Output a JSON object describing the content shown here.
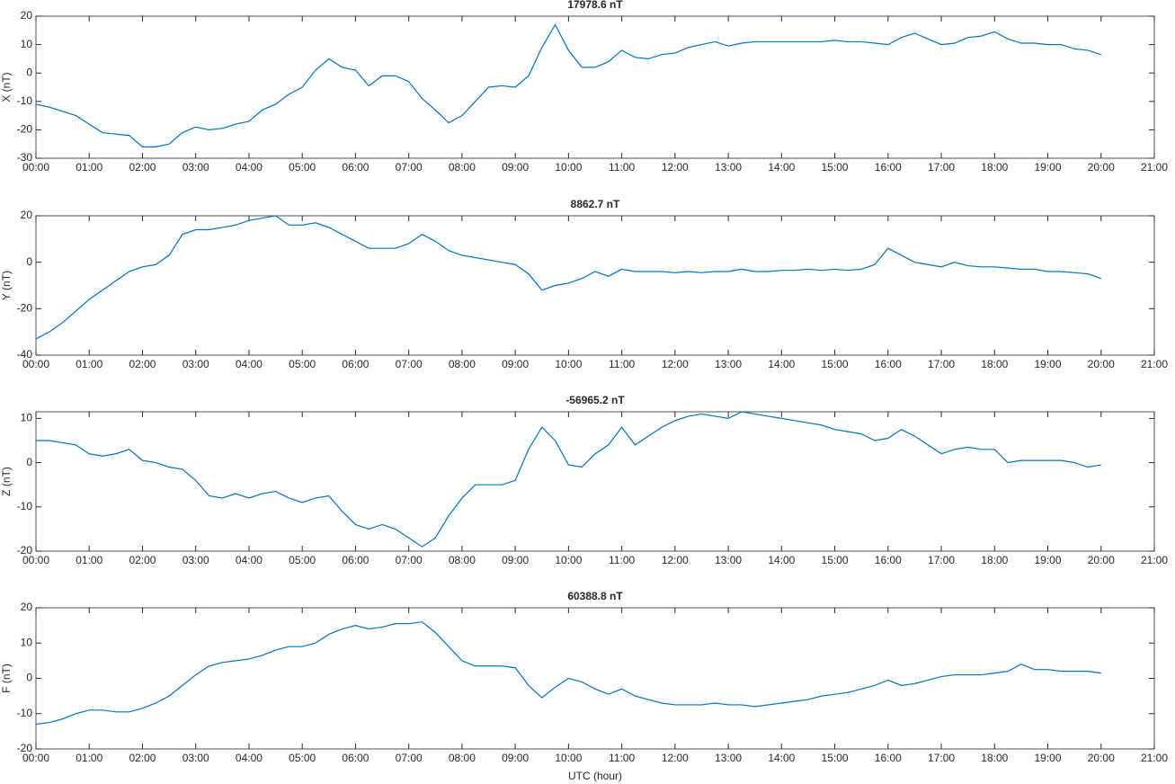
{
  "chart_data": [
    {
      "type": "line",
      "title": "17978.6 nT",
      "y_label": "X (nT)",
      "x": [
        0,
        0.25,
        0.5,
        0.75,
        1,
        1.25,
        1.5,
        1.75,
        2,
        2.25,
        2.5,
        2.75,
        3,
        3.25,
        3.5,
        3.75,
        4,
        4.25,
        4.5,
        4.75,
        5,
        5.25,
        5.5,
        5.75,
        6,
        6.25,
        6.5,
        6.75,
        7,
        7.25,
        7.5,
        7.75,
        8,
        8.25,
        8.5,
        8.75,
        9,
        9.25,
        9.5,
        9.75,
        10,
        10.25,
        10.5,
        10.75,
        11,
        11.25,
        11.5,
        11.75,
        12,
        12.25,
        12.5,
        12.75,
        13,
        13.25,
        13.5,
        13.75,
        14,
        14.25,
        14.5,
        14.75,
        15,
        15.25,
        15.5,
        15.75,
        16,
        16.25,
        16.5,
        16.75,
        17,
        17.25,
        17.5,
        17.75,
        18,
        18.25,
        18.5,
        18.75,
        19,
        19.25,
        19.5,
        19.75,
        20
      ],
      "series": [
        {
          "color": "#0072bd",
          "values": [
            -11,
            -12,
            -13.5,
            -15,
            -18,
            -21,
            -21.5,
            -22,
            -26,
            -26,
            -25,
            -21,
            -19,
            -20,
            -19.5,
            -18,
            -17,
            -13,
            -11,
            -7.5,
            -5,
            1,
            5,
            2,
            1,
            -4.5,
            -1,
            -1,
            -3,
            -9,
            -13,
            -17.5,
            -15,
            -10,
            -5,
            -4.5,
            -5,
            -1,
            9,
            17,
            8,
            2,
            2,
            4,
            8,
            5.5,
            5,
            6.5,
            7,
            9,
            10,
            11,
            9.5,
            10.5,
            11,
            11,
            11,
            11,
            11,
            11,
            11.5,
            11,
            11,
            10.5,
            10,
            12.5,
            14,
            12,
            10,
            10.5,
            12.5,
            13,
            14.5,
            12,
            10.5,
            10.5,
            10,
            10,
            8.5,
            8,
            6.5
          ]
        }
      ],
      "xlim": [
        0,
        21
      ],
      "xticks": [
        {
          "value": 0,
          "label": "00:00"
        },
        {
          "value": 1,
          "label": "01:00"
        },
        {
          "value": 2,
          "label": "02:00"
        },
        {
          "value": 3,
          "label": "03:00"
        },
        {
          "value": 4,
          "label": "04:00"
        },
        {
          "value": 5,
          "label": "05:00"
        },
        {
          "value": 6,
          "label": "06:00"
        },
        {
          "value": 7,
          "label": "07:00"
        },
        {
          "value": 8,
          "label": "08:00"
        },
        {
          "value": 9,
          "label": "09:00"
        },
        {
          "value": 10,
          "label": "10:00"
        },
        {
          "value": 11,
          "label": "11:00"
        },
        {
          "value": 12,
          "label": "12:00"
        },
        {
          "value": 13,
          "label": "13:00"
        },
        {
          "value": 14,
          "label": "14:00"
        },
        {
          "value": 15,
          "label": "15:00"
        },
        {
          "value": 16,
          "label": "16:00"
        },
        {
          "value": 17,
          "label": "17:00"
        },
        {
          "value": 18,
          "label": "18:00"
        },
        {
          "value": 19,
          "label": "19:00"
        },
        {
          "value": 20,
          "label": "20:00"
        },
        {
          "value": 21,
          "label": "21:00"
        }
      ],
      "ylim": [
        -30,
        20
      ],
      "yticks": [
        -30,
        -20,
        -10,
        0,
        10,
        20
      ]
    },
    {
      "type": "line",
      "title": "8862.7 nT",
      "y_label": "Y (nT)",
      "x": [
        0,
        0.25,
        0.5,
        0.75,
        1,
        1.25,
        1.5,
        1.75,
        2,
        2.25,
        2.5,
        2.75,
        3,
        3.25,
        3.5,
        3.75,
        4,
        4.25,
        4.5,
        4.75,
        5,
        5.25,
        5.5,
        5.75,
        6,
        6.25,
        6.5,
        6.75,
        7,
        7.25,
        7.5,
        7.75,
        8,
        8.25,
        8.5,
        8.75,
        9,
        9.25,
        9.5,
        9.75,
        10,
        10.25,
        10.5,
        10.75,
        11,
        11.25,
        11.5,
        11.75,
        12,
        12.25,
        12.5,
        12.75,
        13,
        13.25,
        13.5,
        13.75,
        14,
        14.25,
        14.5,
        14.75,
        15,
        15.25,
        15.5,
        15.75,
        16,
        16.25,
        16.5,
        16.75,
        17,
        17.25,
        17.5,
        17.75,
        18,
        18.25,
        18.5,
        18.75,
        19,
        19.25,
        19.5,
        19.75,
        20
      ],
      "series": [
        {
          "color": "#0072bd",
          "values": [
            -33,
            -30,
            -26,
            -21,
            -16,
            -12,
            -8,
            -4,
            -2,
            -1,
            3,
            12,
            14,
            14,
            15,
            16,
            18,
            19,
            20,
            16,
            16,
            17,
            15,
            12,
            9,
            6,
            6,
            6,
            8,
            12,
            9,
            5,
            3,
            2,
            1,
            0,
            -1,
            -5,
            -12,
            -10,
            -9,
            -7,
            -4,
            -6,
            -3,
            -4,
            -4,
            -4,
            -4.5,
            -4,
            -4.5,
            -4,
            -4,
            -3,
            -4,
            -4,
            -3.5,
            -3.5,
            -3,
            -3.5,
            -3,
            -3.5,
            -3,
            -1,
            6,
            3,
            0,
            -1,
            -2,
            0,
            -1.5,
            -2,
            -2,
            -2.5,
            -3,
            -3,
            -4,
            -4,
            -4.5,
            -5,
            -7
          ]
        }
      ],
      "xlim": [
        0,
        21
      ],
      "xticks": [
        {
          "value": 0,
          "label": "00:00"
        },
        {
          "value": 1,
          "label": "01:00"
        },
        {
          "value": 2,
          "label": "02:00"
        },
        {
          "value": 3,
          "label": "03:00"
        },
        {
          "value": 4,
          "label": "04:00"
        },
        {
          "value": 5,
          "label": "05:00"
        },
        {
          "value": 6,
          "label": "06:00"
        },
        {
          "value": 7,
          "label": "07:00"
        },
        {
          "value": 8,
          "label": "08:00"
        },
        {
          "value": 9,
          "label": "09:00"
        },
        {
          "value": 10,
          "label": "10:00"
        },
        {
          "value": 11,
          "label": "11:00"
        },
        {
          "value": 12,
          "label": "12:00"
        },
        {
          "value": 13,
          "label": "13:00"
        },
        {
          "value": 14,
          "label": "14:00"
        },
        {
          "value": 15,
          "label": "15:00"
        },
        {
          "value": 16,
          "label": "16:00"
        },
        {
          "value": 17,
          "label": "17:00"
        },
        {
          "value": 18,
          "label": "18:00"
        },
        {
          "value": 19,
          "label": "19:00"
        },
        {
          "value": 20,
          "label": "20:00"
        },
        {
          "value": 21,
          "label": "21:00"
        }
      ],
      "ylim": [
        -40,
        20
      ],
      "yticks": [
        -40,
        -20,
        0,
        20
      ]
    },
    {
      "type": "line",
      "title": "-56965.2 nT",
      "y_label": "Z (nT)",
      "x": [
        0,
        0.25,
        0.5,
        0.75,
        1,
        1.25,
        1.5,
        1.75,
        2,
        2.25,
        2.5,
        2.75,
        3,
        3.25,
        3.5,
        3.75,
        4,
        4.25,
        4.5,
        4.75,
        5,
        5.25,
        5.5,
        5.75,
        6,
        6.25,
        6.5,
        6.75,
        7,
        7.25,
        7.5,
        7.75,
        8,
        8.25,
        8.5,
        8.75,
        9,
        9.25,
        9.5,
        9.75,
        10,
        10.25,
        10.5,
        10.75,
        11,
        11.25,
        11.5,
        11.75,
        12,
        12.25,
        12.5,
        12.75,
        13,
        13.25,
        13.5,
        13.75,
        14,
        14.25,
        14.5,
        14.75,
        15,
        15.25,
        15.5,
        15.75,
        16,
        16.25,
        16.5,
        16.75,
        17,
        17.25,
        17.5,
        17.75,
        18,
        18.25,
        18.5,
        18.75,
        19,
        19.25,
        19.5,
        19.75,
        20
      ],
      "series": [
        {
          "color": "#0072bd",
          "values": [
            5,
            5,
            4.5,
            4,
            2,
            1.5,
            2,
            3,
            0.5,
            0,
            -1,
            -1.5,
            -4,
            -7.5,
            -8,
            -7,
            -8,
            -7,
            -6.5,
            -8,
            -9,
            -8,
            -7.5,
            -11,
            -14,
            -15,
            -14,
            -15,
            -17,
            -19,
            -17,
            -12,
            -8,
            -5,
            -5,
            -5,
            -4,
            3,
            8,
            5,
            -0.5,
            -1,
            2,
            4,
            8,
            4,
            6,
            8,
            9.5,
            10.5,
            11,
            10.5,
            10,
            11.5,
            11,
            10.5,
            10,
            9.5,
            9,
            8.5,
            7.5,
            7,
            6.5,
            5,
            5.5,
            7.5,
            6,
            4,
            2,
            3,
            3.5,
            3,
            3,
            0,
            0.5,
            0.5,
            0.5,
            0.5,
            0,
            -1,
            -0.5
          ]
        }
      ],
      "xlim": [
        0,
        21
      ],
      "xticks": [
        {
          "value": 0,
          "label": "00:00"
        },
        {
          "value": 1,
          "label": "01:00"
        },
        {
          "value": 2,
          "label": "02:00"
        },
        {
          "value": 3,
          "label": "03:00"
        },
        {
          "value": 4,
          "label": "04:00"
        },
        {
          "value": 5,
          "label": "05:00"
        },
        {
          "value": 6,
          "label": "06:00"
        },
        {
          "value": 7,
          "label": "07:00"
        },
        {
          "value": 8,
          "label": "08:00"
        },
        {
          "value": 9,
          "label": "09:00"
        },
        {
          "value": 10,
          "label": "10:00"
        },
        {
          "value": 11,
          "label": "11:00"
        },
        {
          "value": 12,
          "label": "12:00"
        },
        {
          "value": 13,
          "label": "13:00"
        },
        {
          "value": 14,
          "label": "14:00"
        },
        {
          "value": 15,
          "label": "15:00"
        },
        {
          "value": 16,
          "label": "16:00"
        },
        {
          "value": 17,
          "label": "17:00"
        },
        {
          "value": 18,
          "label": "18:00"
        },
        {
          "value": 19,
          "label": "19:00"
        },
        {
          "value": 20,
          "label": "20:00"
        },
        {
          "value": 21,
          "label": "21:00"
        }
      ],
      "ylim": [
        -20,
        11.5
      ],
      "yticks": [
        -20,
        -10,
        0,
        10
      ]
    },
    {
      "type": "line",
      "title": "60388.8 nT",
      "y_label": "F (nT)",
      "x_label": "UTC (hour)",
      "x": [
        0,
        0.25,
        0.5,
        0.75,
        1,
        1.25,
        1.5,
        1.75,
        2,
        2.25,
        2.5,
        2.75,
        3,
        3.25,
        3.5,
        3.75,
        4,
        4.25,
        4.5,
        4.75,
        5,
        5.25,
        5.5,
        5.75,
        6,
        6.25,
        6.5,
        6.75,
        7,
        7.25,
        7.5,
        7.75,
        8,
        8.25,
        8.5,
        8.75,
        9,
        9.25,
        9.5,
        9.75,
        10,
        10.25,
        10.5,
        10.75,
        11,
        11.25,
        11.5,
        11.75,
        12,
        12.25,
        12.5,
        12.75,
        13,
        13.25,
        13.5,
        13.75,
        14,
        14.25,
        14.5,
        14.75,
        15,
        15.25,
        15.5,
        15.75,
        16,
        16.25,
        16.5,
        16.75,
        17,
        17.25,
        17.5,
        17.75,
        18,
        18.25,
        18.5,
        18.75,
        19,
        19.25,
        19.5,
        19.75,
        20
      ],
      "series": [
        {
          "color": "#0072bd",
          "values": [
            -13,
            -12.5,
            -11.5,
            -10,
            -9,
            -9,
            -9.5,
            -9.5,
            -8.5,
            -7,
            -5,
            -2,
            1,
            3.5,
            4.5,
            5,
            5.5,
            6.5,
            8,
            9,
            9,
            10,
            12.5,
            14,
            15,
            14,
            14.5,
            15.5,
            15.5,
            16,
            13,
            9,
            5,
            3.5,
            3.5,
            3.5,
            3,
            -2,
            -5.5,
            -2.5,
            0,
            -1,
            -3,
            -4.5,
            -3,
            -5,
            -6,
            -7,
            -7.5,
            -7.5,
            -7.5,
            -7,
            -7.5,
            -7.5,
            -8,
            -7.5,
            -7,
            -6.5,
            -6,
            -5,
            -4.5,
            -4,
            -3,
            -2,
            -0.5,
            -2,
            -1.5,
            -0.5,
            0.5,
            1,
            1,
            1,
            1.5,
            2,
            4,
            2.5,
            2.5,
            2,
            2,
            2,
            1.5
          ]
        }
      ],
      "xlim": [
        0,
        21
      ],
      "xticks": [
        {
          "value": 0,
          "label": "00:00"
        },
        {
          "value": 1,
          "label": "01:00"
        },
        {
          "value": 2,
          "label": "02:00"
        },
        {
          "value": 3,
          "label": "03:00"
        },
        {
          "value": 4,
          "label": "04:00"
        },
        {
          "value": 5,
          "label": "05:00"
        },
        {
          "value": 6,
          "label": "06:00"
        },
        {
          "value": 7,
          "label": "07:00"
        },
        {
          "value": 8,
          "label": "08:00"
        },
        {
          "value": 9,
          "label": "09:00"
        },
        {
          "value": 10,
          "label": "10:00"
        },
        {
          "value": 11,
          "label": "11:00"
        },
        {
          "value": 12,
          "label": "12:00"
        },
        {
          "value": 13,
          "label": "13:00"
        },
        {
          "value": 14,
          "label": "14:00"
        },
        {
          "value": 15,
          "label": "15:00"
        },
        {
          "value": 16,
          "label": "16:00"
        },
        {
          "value": 17,
          "label": "17:00"
        },
        {
          "value": 18,
          "label": "18:00"
        },
        {
          "value": 19,
          "label": "19:00"
        },
        {
          "value": 20,
          "label": "20:00"
        },
        {
          "value": 21,
          "label": "21:00"
        }
      ],
      "ylim": [
        -20,
        20
      ],
      "yticks": [
        -20,
        -10,
        0,
        10,
        20
      ]
    }
  ]
}
